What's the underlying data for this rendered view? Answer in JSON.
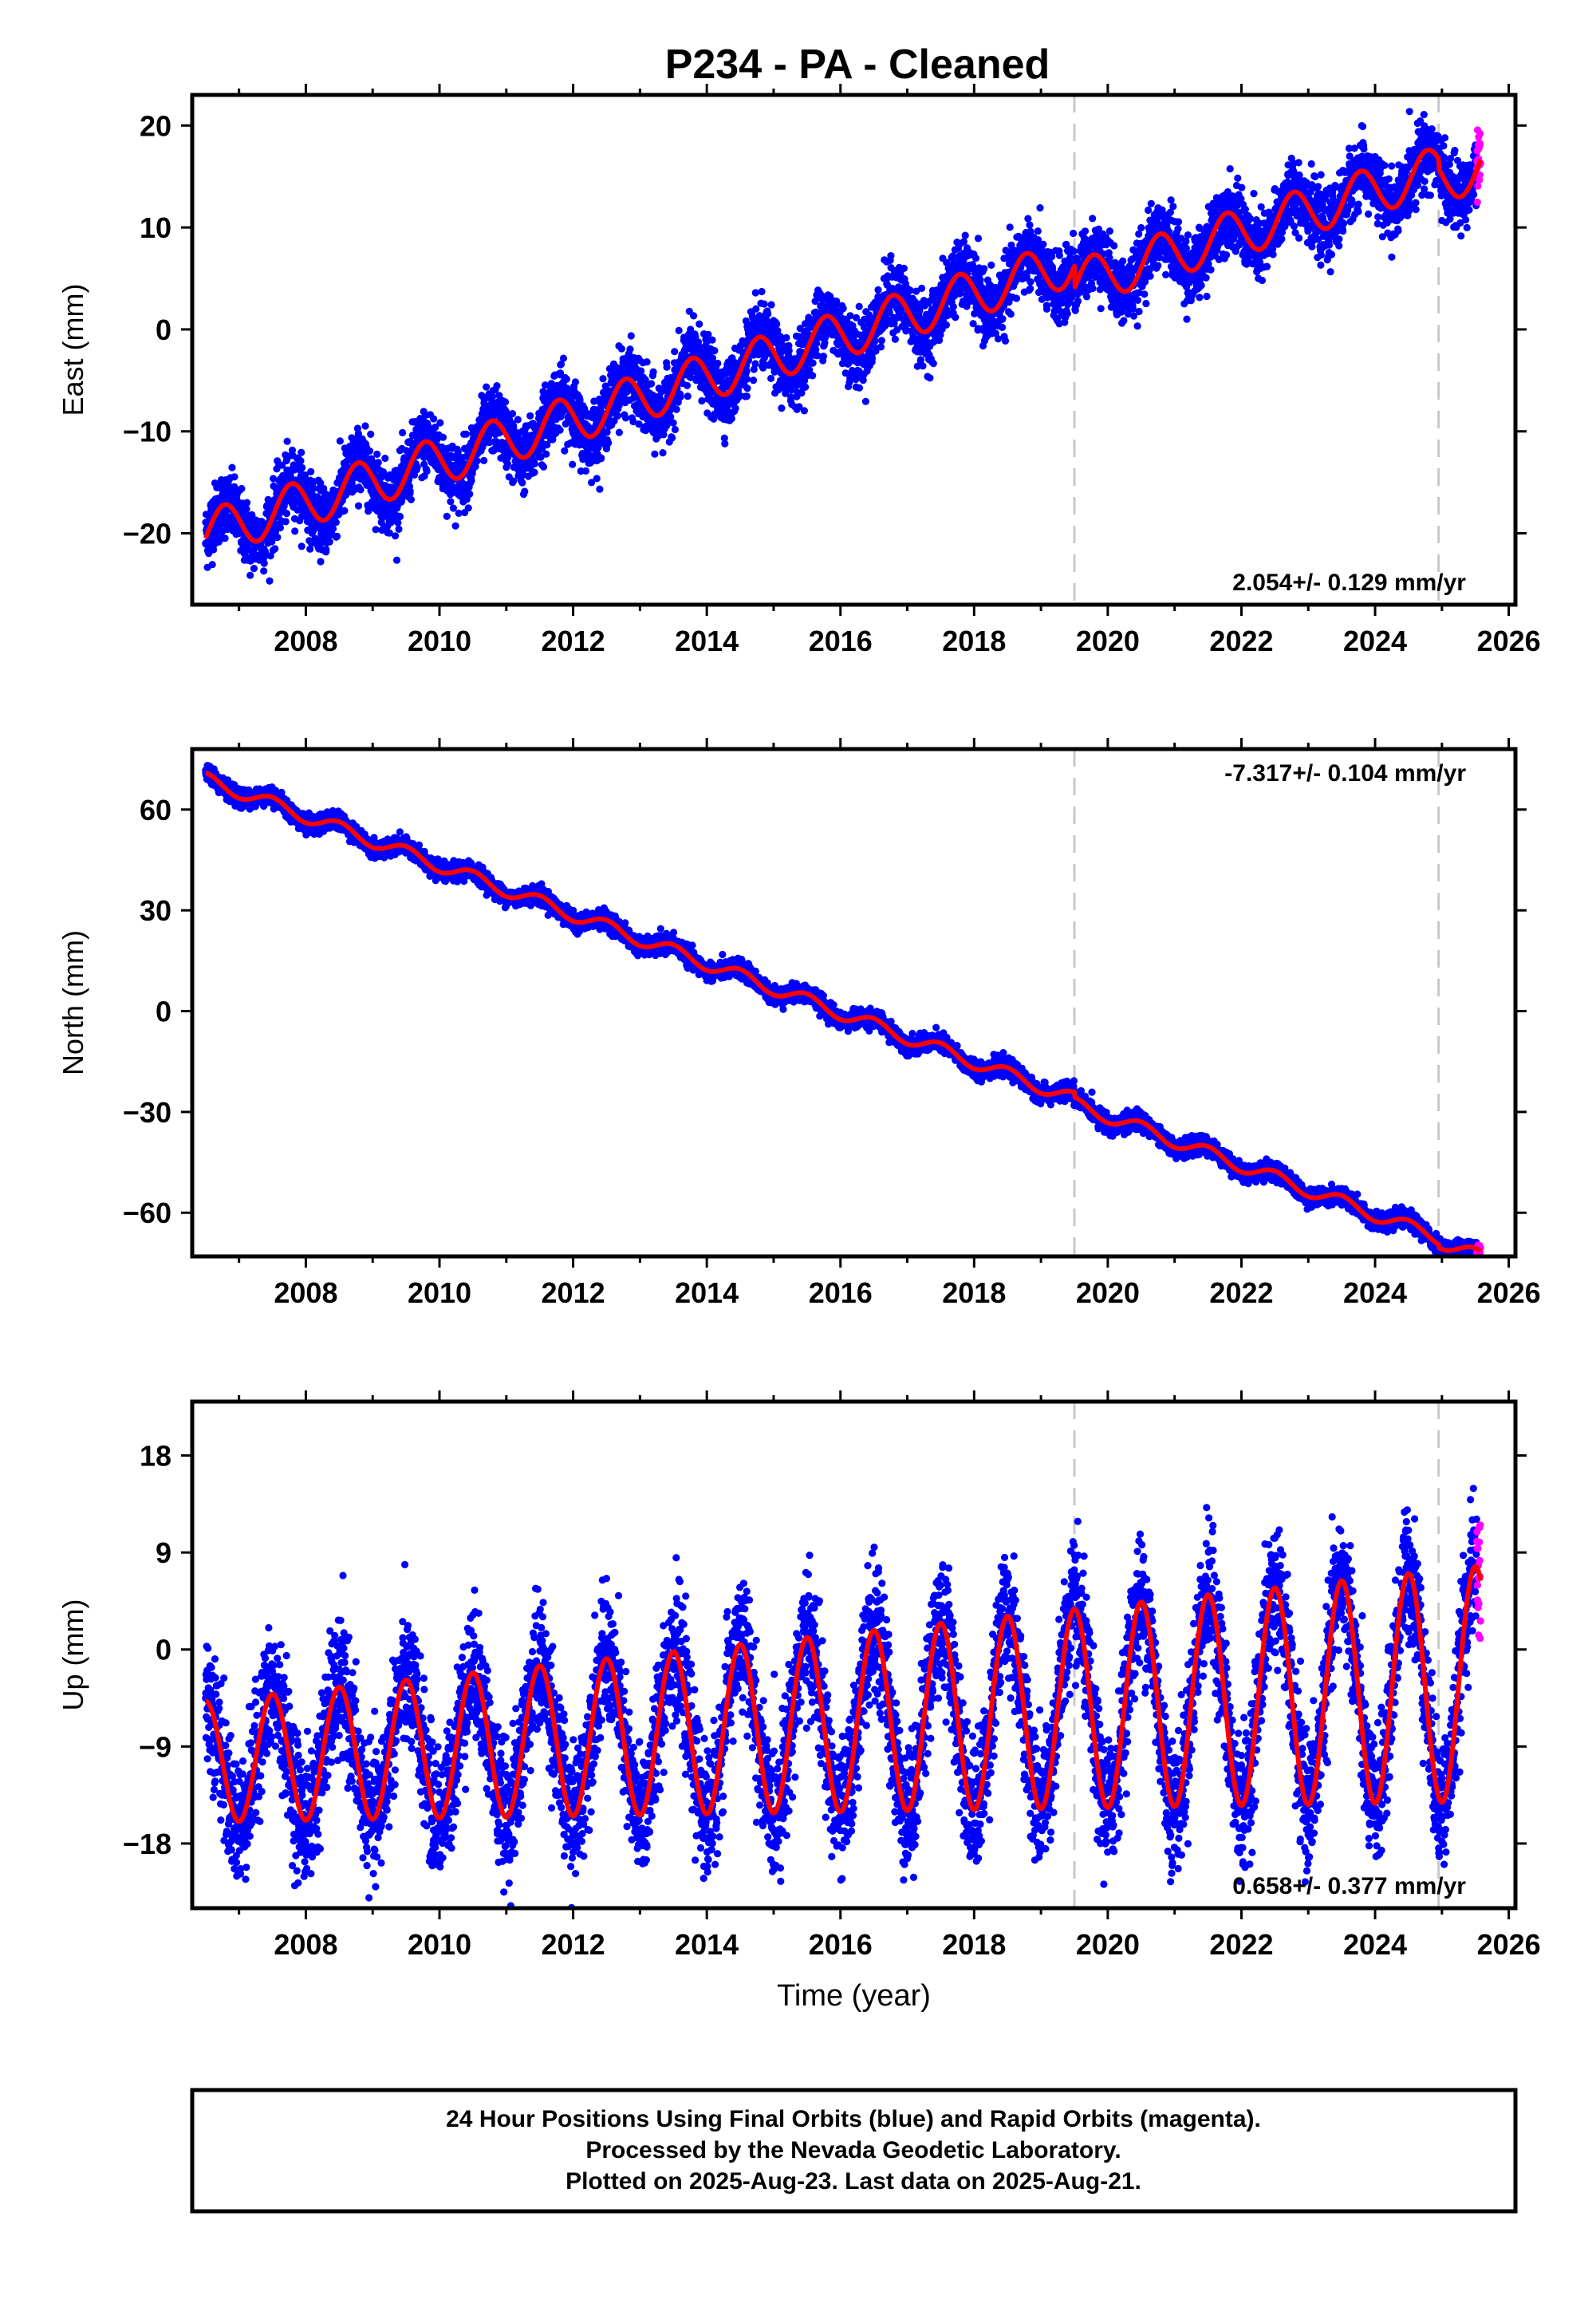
{
  "title": "P234  - PA - Cleaned",
  "chart_data": [
    {
      "type": "scatter",
      "component": "East",
      "ylabel": "East (mm)",
      "xlim": [
        2006.3,
        2026.1
      ],
      "ylim": [
        -27,
        23
      ],
      "yticks": [
        20,
        10,
        0,
        -10,
        -20
      ],
      "ytick_labels": [
        "20",
        "10",
        "0",
        "−10",
        "−20"
      ],
      "xticks": [
        2008,
        2010,
        2012,
        2014,
        2016,
        2018,
        2020,
        2022,
        2024,
        2026
      ],
      "xtick_labels": [
        "2008",
        "2010",
        "2012",
        "2014",
        "2016",
        "2018",
        "2020",
        "2022",
        "2024",
        "2026"
      ],
      "rate_label": "2.054+/- 0.129 mm/yr",
      "rate_position": "bottom-right",
      "start": 2006.5,
      "end": 2025.58,
      "rapid_start": 2025.52,
      "scatter_sd": 1.6,
      "model": {
        "rate": 2.054,
        "value_at_start": -20.5,
        "annual_amp": 2.3,
        "annual_phase": 0.78,
        "amp_growth": 0.0,
        "steps": [
          {
            "epoch": 2019.5,
            "offset": -2.2
          },
          {
            "epoch": 2024.95,
            "offset": -1.0
          }
        ]
      },
      "vlines": [
        2019.5,
        2024.95
      ]
    },
    {
      "type": "scatter",
      "component": "North",
      "ylabel": "North (mm)",
      "xlim": [
        2006.3,
        2026.1
      ],
      "ylim": [
        -73,
        78
      ],
      "yticks": [
        60,
        30,
        0,
        -30,
        -60
      ],
      "ytick_labels": [
        "60",
        "30",
        "0",
        "−30",
        "−60"
      ],
      "xticks": [
        2008,
        2010,
        2012,
        2014,
        2016,
        2018,
        2020,
        2022,
        2024,
        2026
      ],
      "xtick_labels": [
        "2008",
        "2010",
        "2012",
        "2014",
        "2016",
        "2018",
        "2020",
        "2022",
        "2024",
        "2026"
      ],
      "rate_label": "-7.317+/- 0.104 mm/yr",
      "rate_position": "top-right",
      "start": 2006.5,
      "end": 2025.58,
      "rapid_start": 2025.52,
      "scatter_sd": 1.3,
      "model": {
        "rate": -7.317,
        "value_at_start": 71.0,
        "annual_amp": 2.0,
        "annual_phase": 0.5,
        "amp_growth": 0.0,
        "steps": [
          {
            "epoch": 2019.5,
            "offset": -1.5
          },
          {
            "epoch": 2024.95,
            "offset": -1.0
          }
        ]
      },
      "vlines": [
        2019.5,
        2024.95
      ]
    },
    {
      "type": "scatter",
      "component": "Up",
      "ylabel": "Up (mm)",
      "xlim": [
        2006.3,
        2026.1
      ],
      "ylim": [
        -24,
        23
      ],
      "yticks": [
        18,
        9,
        0,
        -9,
        -18
      ],
      "ytick_labels": [
        "18",
        "9",
        "0",
        "−9",
        "−18"
      ],
      "xticks": [
        2008,
        2010,
        2012,
        2014,
        2016,
        2018,
        2020,
        2022,
        2024,
        2026
      ],
      "xtick_labels": [
        "2008",
        "2010",
        "2012",
        "2014",
        "2016",
        "2018",
        "2020",
        "2022",
        "2024",
        "2026"
      ],
      "xlabel": "Time (year)",
      "rate_label": "0.658+/- 0.377 mm/yr",
      "rate_position": "bottom-right",
      "start": 2006.5,
      "end": 2025.58,
      "rapid_start": 2025.52,
      "scatter_sd": 3.0,
      "model": {
        "rate": 0.658,
        "value_at_start": -4.8,
        "annual_amp": 5.6,
        "annual_phase": 0.5,
        "amp_growth": 0.05,
        "steps": []
      },
      "vlines": [
        2019.5,
        2024.95
      ]
    }
  ],
  "legend": {
    "line1": "24 Hour Positions Using Final Orbits (blue) and Rapid Orbits (magenta).",
    "line2": "Processed by the Nevada Geodetic Laboratory.",
    "line3": "Plotted on 2025-Aug-23. Last data on 2025-Aug-21."
  },
  "colors": {
    "final_orbits": "#0000ff",
    "rapid_orbits": "#ff00ff",
    "model": "#ff0000",
    "vline": "#c8c8c8",
    "frame": "#000000"
  }
}
